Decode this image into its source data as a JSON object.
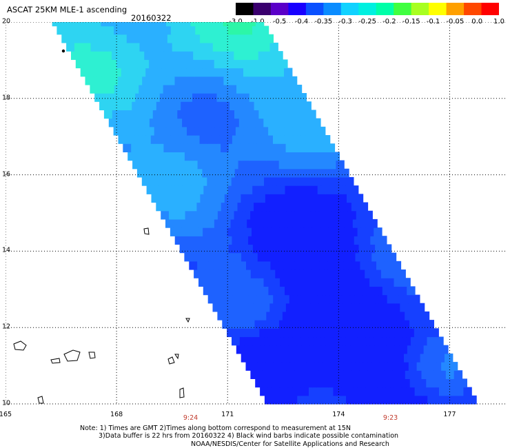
{
  "header": {
    "title": "ASCAT 25KM MLE-1 ascending",
    "date": "20160322"
  },
  "colorbar": {
    "labels": [
      "-3.0",
      "-1.0",
      "-0.5",
      "-0.4",
      "-0.35",
      "-0.3",
      "-0.25",
      "-0.2",
      "-0.15",
      "-0.1",
      "-0.05",
      "0.0",
      "1.0"
    ],
    "colors": [
      "#000000",
      "#3a006e",
      "#5a00c8",
      "#1800ff",
      "#0a50ff",
      "#0a8cff",
      "#10d2ff",
      "#00f0e0",
      "#00ffa8",
      "#40ff40",
      "#a8ff20",
      "#ffff00",
      "#ffa000",
      "#ff4800",
      "#ff0000"
    ]
  },
  "map": {
    "lon_range": [
      165,
      178.5
    ],
    "lat_range": [
      10,
      20
    ],
    "x_ticks": [
      "165",
      "168",
      "171",
      "174",
      "177"
    ],
    "y_ticks": [
      "20",
      "18",
      "16",
      "14",
      "12",
      "10"
    ],
    "swath_times": [
      {
        "lon": 170,
        "label": "9:24"
      },
      {
        "lon": 175.4,
        "label": "9:23"
      }
    ]
  },
  "notes": {
    "line1": "Note: 1) Times are GMT 2)Times along bottom correspond to measurement at 15N",
    "line2": "3)Data buffer is 22 hrs from 20160322 4) Black wind barbs indicate possible contamination",
    "credit": "NOAA/NESDIS/Center for Satellite Applications and Research"
  }
}
